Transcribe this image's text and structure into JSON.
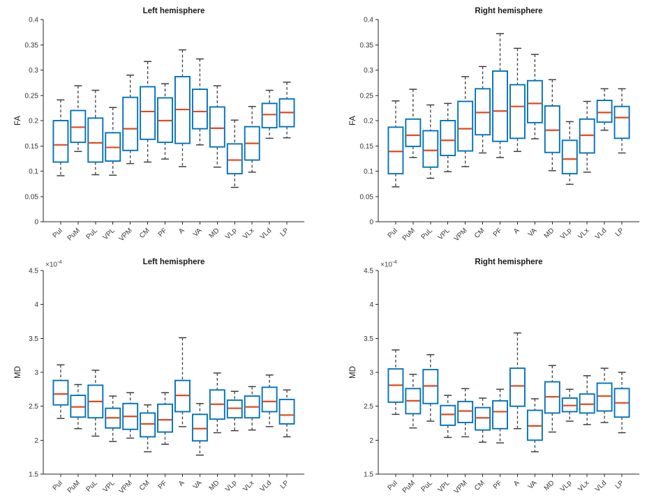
{
  "colors": {
    "box_edge": "#0072bd",
    "median": "#e2491d",
    "whisker": "#3f3f3f",
    "axis": "#262626",
    "tick_text": "#333333",
    "background": "#ffffff"
  },
  "chart_data": [
    {
      "type": "box",
      "position": "top-left",
      "title": "Left hemisphere",
      "ylabel": "FA",
      "ylim": [
        0,
        0.4
      ],
      "yticks": [
        0,
        0.05,
        0.1,
        0.15,
        0.2,
        0.25,
        0.3,
        0.35,
        0.4
      ],
      "ytick_labels": [
        "0",
        "0.05",
        "0.1",
        "0.15",
        "0.2",
        "0.25",
        "0.3",
        "0.35",
        "0.4"
      ],
      "grid": false,
      "categories": [
        "PuI",
        "PuM",
        "PuL",
        "VPL",
        "VPM",
        "CM",
        "PF",
        "A",
        "VA",
        "MD",
        "VLp",
        "VLx",
        "VLd",
        "LP"
      ],
      "box_format": [
        "whisker_low",
        "q1",
        "median",
        "q3",
        "whisker_high"
      ],
      "boxes": [
        [
          0.091,
          0.118,
          0.152,
          0.2,
          0.241
        ],
        [
          0.139,
          0.157,
          0.187,
          0.22,
          0.269
        ],
        [
          0.093,
          0.118,
          0.156,
          0.205,
          0.26
        ],
        [
          0.092,
          0.12,
          0.147,
          0.176,
          0.226
        ],
        [
          0.115,
          0.141,
          0.184,
          0.246,
          0.29
        ],
        [
          0.118,
          0.163,
          0.218,
          0.267,
          0.317
        ],
        [
          0.124,
          0.157,
          0.2,
          0.245,
          0.273
        ],
        [
          0.109,
          0.155,
          0.222,
          0.287,
          0.34
        ],
        [
          0.152,
          0.184,
          0.218,
          0.262,
          0.322
        ],
        [
          0.108,
          0.148,
          0.185,
          0.227,
          0.269
        ],
        [
          0.068,
          0.095,
          0.122,
          0.154,
          0.201
        ],
        [
          0.098,
          0.122,
          0.155,
          0.188,
          0.228
        ],
        [
          0.165,
          0.186,
          0.212,
          0.234,
          0.26
        ],
        [
          0.166,
          0.188,
          0.216,
          0.243,
          0.276
        ]
      ]
    },
    {
      "type": "box",
      "position": "top-right",
      "title": "Right hemisphere",
      "ylabel": "FA",
      "ylim": [
        0,
        0.4
      ],
      "yticks": [
        0,
        0.05,
        0.1,
        0.15,
        0.2,
        0.25,
        0.3,
        0.35,
        0.4
      ],
      "ytick_labels": [
        "0",
        "0.05",
        "0.1",
        "0.15",
        "0.2",
        "0.25",
        "0.3",
        "0.35",
        "0.4"
      ],
      "grid": false,
      "categories": [
        "PuI",
        "PuM",
        "PuL",
        "VPL",
        "VPM",
        "CM",
        "PF",
        "A",
        "VA",
        "MD",
        "VLp",
        "VLx",
        "VLd",
        "LP"
      ],
      "box_format": [
        "whisker_low",
        "q1",
        "median",
        "q3",
        "whisker_high"
      ],
      "boxes": [
        [
          0.069,
          0.095,
          0.139,
          0.187,
          0.239
        ],
        [
          0.127,
          0.149,
          0.171,
          0.203,
          0.262
        ],
        [
          0.086,
          0.108,
          0.141,
          0.18,
          0.231
        ],
        [
          0.099,
          0.131,
          0.161,
          0.2,
          0.234
        ],
        [
          0.109,
          0.14,
          0.184,
          0.238,
          0.287
        ],
        [
          0.136,
          0.172,
          0.216,
          0.263,
          0.307
        ],
        [
          0.127,
          0.159,
          0.219,
          0.298,
          0.372
        ],
        [
          0.139,
          0.165,
          0.228,
          0.271,
          0.343
        ],
        [
          0.164,
          0.196,
          0.234,
          0.279,
          0.331
        ],
        [
          0.101,
          0.137,
          0.181,
          0.229,
          0.281
        ],
        [
          0.074,
          0.095,
          0.124,
          0.161,
          0.198
        ],
        [
          0.098,
          0.136,
          0.171,
          0.203,
          0.238
        ],
        [
          0.181,
          0.197,
          0.216,
          0.24,
          0.263
        ],
        [
          0.136,
          0.165,
          0.206,
          0.228,
          0.263
        ]
      ]
    },
    {
      "type": "box",
      "position": "bottom-left",
      "title": "Left hemisphere",
      "ylabel": "MD",
      "y_exponent": {
        "base": "×10",
        "sup": "-4"
      },
      "ylim": [
        1.5,
        4.5
      ],
      "yticks": [
        1.5,
        2,
        2.5,
        3,
        3.5,
        4,
        4.5
      ],
      "ytick_labels": [
        "1.5",
        "2",
        "2.5",
        "3",
        "3.5",
        "4",
        "4.5"
      ],
      "grid": false,
      "categories": [
        "PuI",
        "PuM",
        "PuL",
        "VPL",
        "VPM",
        "CM",
        "PF",
        "A",
        "VA",
        "MD",
        "VLp",
        "VLx",
        "VLd",
        "LP"
      ],
      "box_format": [
        "whisker_low",
        "q1",
        "median",
        "q3",
        "whisker_high"
      ],
      "boxes": [
        [
          2.32,
          2.52,
          2.68,
          2.88,
          3.11
        ],
        [
          2.17,
          2.34,
          2.49,
          2.66,
          2.82
        ],
        [
          2.06,
          2.33,
          2.57,
          2.81,
          3.03
        ],
        [
          1.98,
          2.18,
          2.33,
          2.47,
          2.65
        ],
        [
          2.03,
          2.16,
          2.35,
          2.54,
          2.7
        ],
        [
          1.83,
          2.05,
          2.24,
          2.4,
          2.52
        ],
        [
          1.94,
          2.12,
          2.3,
          2.53,
          2.7
        ],
        [
          2.2,
          2.42,
          2.66,
          2.88,
          3.51
        ],
        [
          1.78,
          1.99,
          2.17,
          2.38,
          2.54
        ],
        [
          2.11,
          2.31,
          2.53,
          2.74,
          2.99
        ],
        [
          2.14,
          2.33,
          2.47,
          2.59,
          2.72
        ],
        [
          2.15,
          2.33,
          2.49,
          2.65,
          2.79
        ],
        [
          2.2,
          2.42,
          2.57,
          2.78,
          2.96
        ],
        [
          2.05,
          2.24,
          2.37,
          2.6,
          2.74
        ]
      ]
    },
    {
      "type": "box",
      "position": "bottom-right",
      "title": "Right hemisphere",
      "ylabel": "MD",
      "y_exponent": {
        "base": "×10",
        "sup": "-4"
      },
      "ylim": [
        1.5,
        4.5
      ],
      "yticks": [
        1.5,
        2,
        2.5,
        3,
        3.5,
        4,
        4.5
      ],
      "ytick_labels": [
        "1.5",
        "2",
        "2.5",
        "3",
        "3.5",
        "4",
        "4.5"
      ],
      "grid": false,
      "categories": [
        "PuI",
        "PuM",
        "PuL",
        "VPL",
        "VPM",
        "CM",
        "PF",
        "A",
        "VA",
        "MD",
        "VLp",
        "VLx",
        "VLd",
        "LP"
      ],
      "box_format": [
        "whisker_low",
        "q1",
        "median",
        "q3",
        "whisker_high"
      ],
      "boxes": [
        [
          2.38,
          2.56,
          2.81,
          3.05,
          3.33
        ],
        [
          2.18,
          2.39,
          2.58,
          2.76,
          2.97
        ],
        [
          2.28,
          2.54,
          2.8,
          3.04,
          3.26
        ],
        [
          2.04,
          2.22,
          2.38,
          2.51,
          2.66
        ],
        [
          2.05,
          2.26,
          2.43,
          2.57,
          2.76
        ],
        [
          1.97,
          2.15,
          2.33,
          2.48,
          2.62
        ],
        [
          1.96,
          2.17,
          2.42,
          2.58,
          2.75
        ],
        [
          2.17,
          2.5,
          2.8,
          3.06,
          3.58
        ],
        [
          1.83,
          2.0,
          2.21,
          2.44,
          2.61
        ],
        [
          2.12,
          2.4,
          2.64,
          2.86,
          3.1
        ],
        [
          2.28,
          2.42,
          2.51,
          2.62,
          2.75
        ],
        [
          2.23,
          2.4,
          2.53,
          2.68,
          2.95
        ],
        [
          2.26,
          2.43,
          2.65,
          2.84,
          3.06
        ],
        [
          2.11,
          2.34,
          2.55,
          2.76,
          3.0
        ]
      ]
    }
  ]
}
